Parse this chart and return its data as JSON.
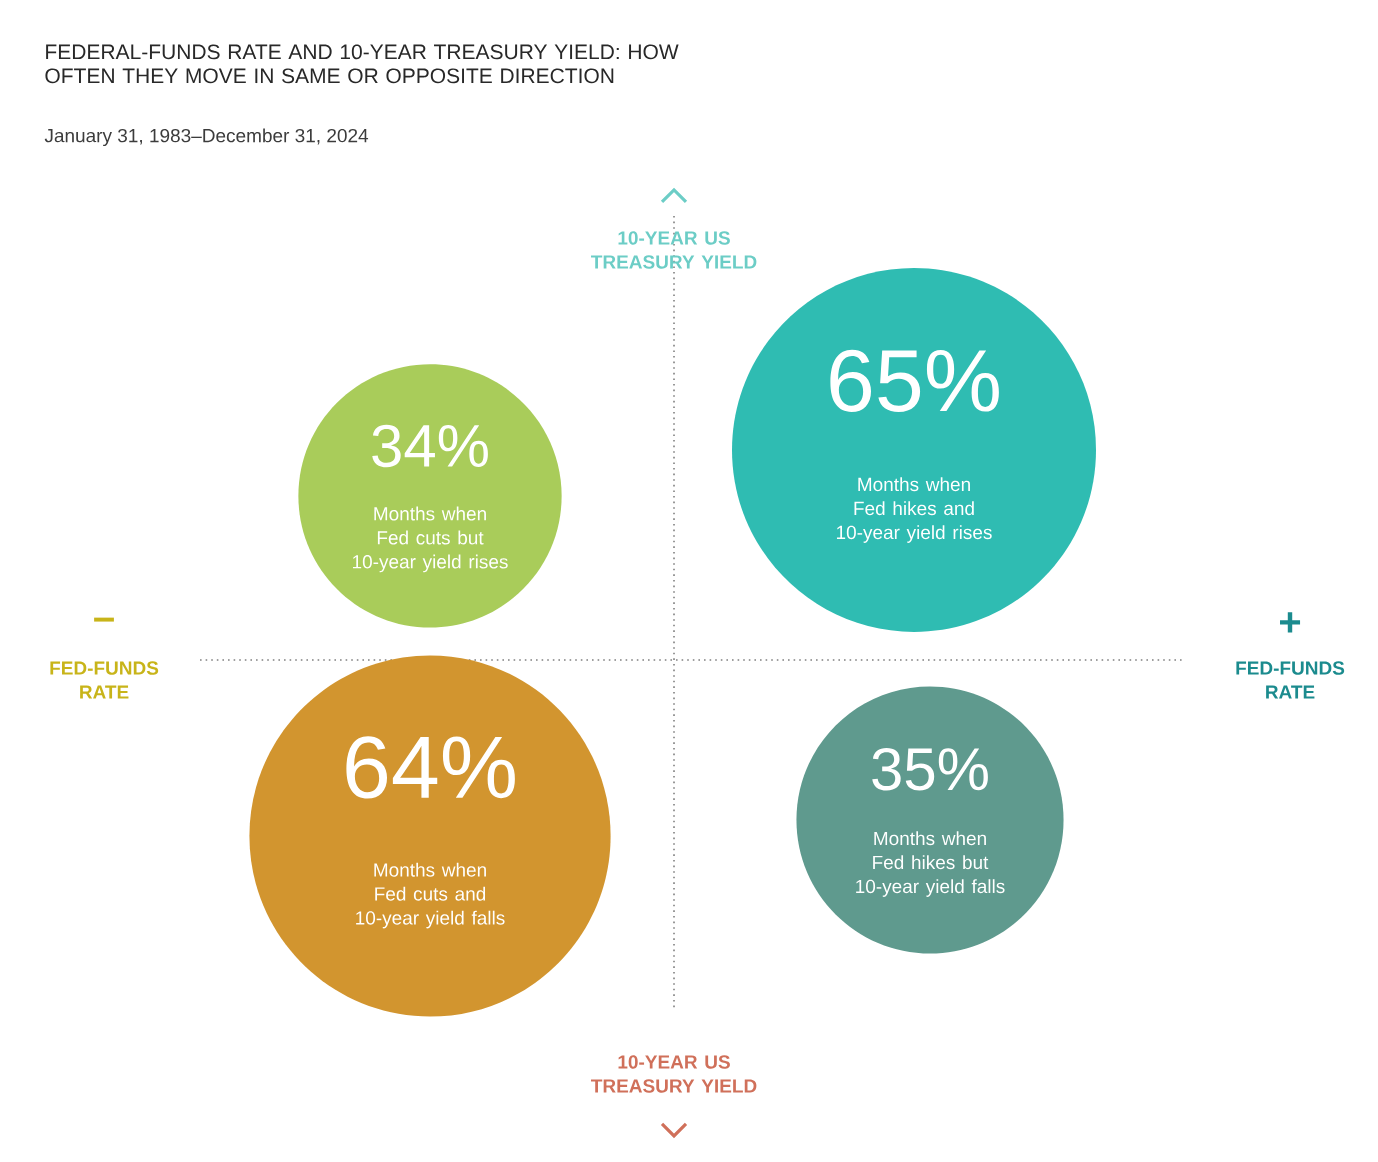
{
  "chart_data": {
    "type": "other",
    "title": "FEDERAL-FUNDS RATE AND 10-YEAR TREASURY YIELD: HOW OFTEN THEY MOVE IN SAME OR OPPOSITE DIRECTION",
    "subtitle": "January 31, 1983–December 31, 2024",
    "categories": [
      "Months when Fed cuts but 10-year yield rises",
      "Months when Fed hikes and 10-year yield rises",
      "Months when Fed cuts and 10-year yield falls",
      "Months when Fed hikes but 10-year yield falls"
    ],
    "values": [
      34,
      65,
      64,
      35
    ],
    "value_labels": [
      "34%",
      "65%",
      "64%",
      "35%"
    ],
    "colors": [
      "#a9cc5a",
      "#2fbcb2",
      "#d2952f",
      "#5f9a8e"
    ],
    "annotations": [
      "10-YEAR US TREASURY YIELD",
      "10-YEAR US TREASURY YIELD",
      "FED-FUNDS RATE",
      "FED-FUNDS RATE",
      "–",
      "+"
    ]
  }
}
